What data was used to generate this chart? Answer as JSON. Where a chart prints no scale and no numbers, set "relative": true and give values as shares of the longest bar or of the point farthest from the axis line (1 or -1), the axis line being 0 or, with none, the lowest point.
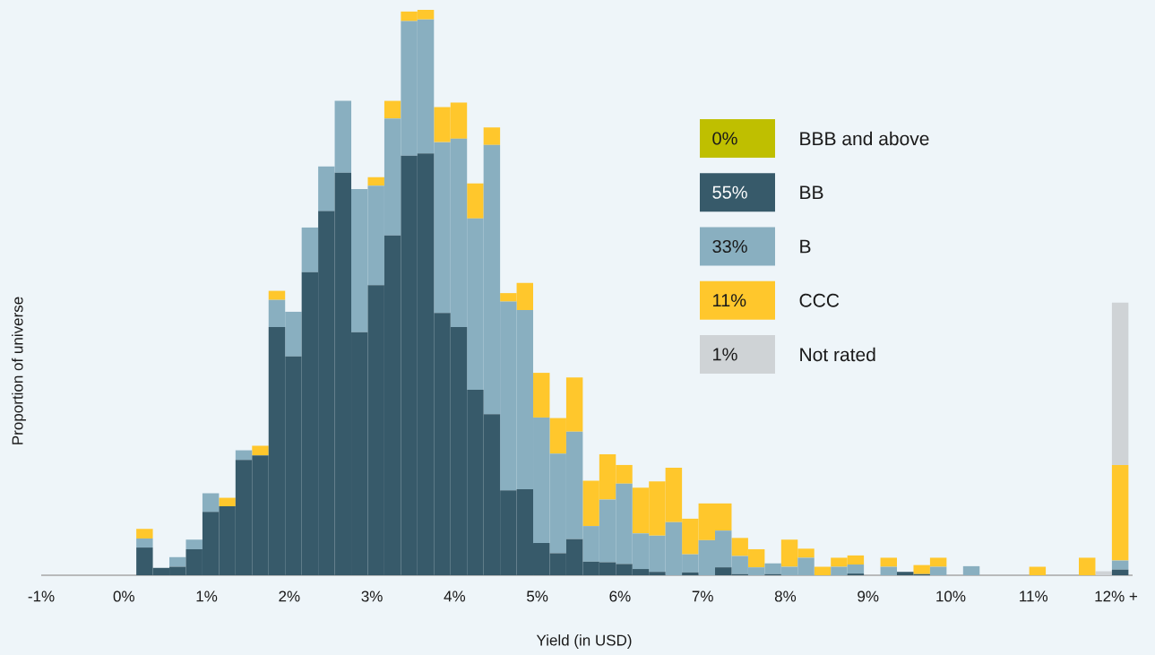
{
  "chart_data": {
    "type": "bar",
    "stacked": true,
    "relative": true,
    "xlabel": "Yield (in USD)",
    "ylabel": "Proportion of universe",
    "legend": "top right",
    "annotations": [
      "0%",
      "55%",
      "33%",
      "11%",
      "1%"
    ],
    "xlim": [
      -1,
      12.2
    ],
    "xticks": [
      {
        "value": -1,
        "label": "-1%"
      },
      {
        "value": 0,
        "label": "0%"
      },
      {
        "value": 1,
        "label": "1%"
      },
      {
        "value": 2,
        "label": "2%"
      },
      {
        "value": 3,
        "label": "3%"
      },
      {
        "value": 4,
        "label": "4%"
      },
      {
        "value": 5,
        "label": "5%"
      },
      {
        "value": 6,
        "label": "6%"
      },
      {
        "value": 7,
        "label": "7%"
      },
      {
        "value": 8,
        "label": "8%"
      },
      {
        "value": 9,
        "label": "9%"
      },
      {
        "value": 10,
        "label": "10%"
      },
      {
        "value": 11,
        "label": "11%"
      },
      {
        "value": 12,
        "label": "12% +"
      }
    ],
    "x": [
      0.25,
      0.45,
      0.65,
      0.85,
      1.05,
      1.25,
      1.45,
      1.65,
      1.85,
      2.05,
      2.25,
      2.45,
      2.65,
      2.85,
      3.05,
      3.25,
      3.45,
      3.65,
      3.85,
      4.05,
      4.25,
      4.45,
      4.65,
      4.85,
      5.05,
      5.25,
      5.45,
      5.65,
      5.85,
      6.05,
      6.25,
      6.45,
      6.65,
      6.85,
      7.05,
      7.25,
      7.45,
      7.65,
      7.85,
      8.05,
      8.25,
      8.45,
      8.65,
      8.85,
      9.05,
      9.25,
      9.45,
      9.65,
      9.85,
      10.05,
      10.25,
      10.45,
      10.65,
      10.85,
      11.05,
      11.25,
      11.45,
      11.65,
      11.85,
      12.05
    ],
    "series": [
      {
        "name": "BBB and above",
        "color": "#bfbf00",
        "values": [
          0,
          0,
          0,
          0,
          0,
          0,
          0,
          0,
          0,
          0,
          0,
          0,
          0,
          0,
          0,
          0,
          0,
          0,
          0,
          0,
          0,
          0,
          0,
          0,
          0,
          0,
          0,
          0,
          0,
          0,
          0,
          0,
          0,
          0,
          0,
          0,
          0,
          0,
          0,
          0,
          0,
          0,
          0,
          0,
          0,
          0,
          0,
          0,
          0,
          0,
          0,
          0,
          0,
          0,
          0,
          0,
          0,
          0,
          0,
          0
        ]
      },
      {
        "name": "BB",
        "color": "#375a6a",
        "values": [
          0.049,
          0.013,
          0.015,
          0.046,
          0.112,
          0.122,
          0.204,
          0.212,
          0.439,
          0.387,
          0.536,
          0.644,
          0.712,
          0.43,
          0.513,
          0.601,
          0.742,
          0.746,
          0.464,
          0.439,
          0.328,
          0.285,
          0.15,
          0.152,
          0.057,
          0.039,
          0.064,
          0.024,
          0.023,
          0.02,
          0.011,
          0.006,
          0,
          0.005,
          0,
          0.014,
          0.002,
          0,
          0.002,
          0,
          0,
          0,
          0,
          0.003,
          0,
          0,
          0.006,
          0.002,
          0,
          0,
          0,
          0,
          0,
          0,
          0,
          0,
          0,
          0,
          0,
          0.01
        ]
      },
      {
        "name": "B",
        "color": "#89afc0",
        "values": [
          0.016,
          0,
          0.017,
          0.017,
          0.033,
          0,
          0.017,
          0,
          0.048,
          0.079,
          0.079,
          0.079,
          0.127,
          0.253,
          0.176,
          0.207,
          0.238,
          0.237,
          0.302,
          0.333,
          0.303,
          0.476,
          0.334,
          0.317,
          0.222,
          0.176,
          0.19,
          0.063,
          0.111,
          0.142,
          0.063,
          0.064,
          0.094,
          0.032,
          0.062,
          0.065,
          0.032,
          0.014,
          0.019,
          0.015,
          0.031,
          0,
          0.015,
          0.016,
          0,
          0.015,
          0,
          0,
          0.015,
          0,
          0.016,
          0,
          0,
          0,
          0,
          0,
          0,
          0,
          0,
          0.016
        ]
      },
      {
        "name": "CCC",
        "color": "#ffc72c",
        "values": [
          0.017,
          0,
          0,
          0,
          0,
          0.015,
          0,
          0.017,
          0.016,
          0,
          0,
          0,
          0,
          0,
          0.015,
          0.031,
          0.017,
          0.017,
          0.062,
          0.064,
          0.062,
          0.031,
          0.015,
          0.048,
          0.079,
          0.063,
          0.096,
          0.08,
          0.08,
          0.033,
          0.081,
          0.096,
          0.096,
          0.063,
          0.065,
          0.048,
          0.032,
          0.032,
          0,
          0.048,
          0.016,
          0.015,
          0.016,
          0.016,
          0,
          0.016,
          0,
          0.016,
          0.016,
          0,
          0,
          0,
          0,
          0,
          0.015,
          0,
          0,
          0.031,
          0,
          0.169
        ]
      },
      {
        "name": "Not rated",
        "color": "#cfd3d6",
        "values": [
          0,
          0,
          0,
          0,
          0,
          0,
          0,
          0,
          0,
          0,
          0,
          0,
          0,
          0,
          0,
          0,
          0,
          0,
          0,
          0,
          0,
          0,
          0,
          0,
          0,
          0,
          0,
          0,
          0,
          0,
          0,
          0,
          0,
          0,
          0,
          0,
          0,
          0,
          0,
          0,
          0,
          0,
          0,
          0,
          0,
          0,
          0,
          0,
          0,
          0,
          0,
          0,
          0,
          0,
          0,
          0,
          0,
          0,
          0.007,
          0.287
        ]
      }
    ]
  }
}
